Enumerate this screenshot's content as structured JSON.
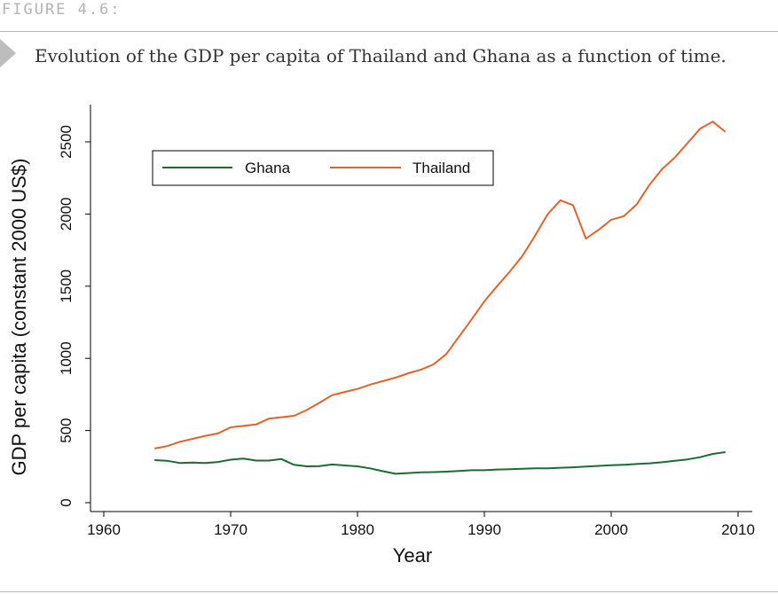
{
  "figure": {
    "label": "FIGURE 4.6:",
    "caption": "Evolution of the GDP per capita of Thailand and Ghana as a function of time."
  },
  "colors": {
    "ghana": "#1e6b32",
    "thailand": "#e0642a",
    "axis": "#000000"
  },
  "chart_data": {
    "type": "line",
    "xlabel": "Year",
    "ylabel": "GDP per capita (constant 2000 US$)",
    "xlim": [
      1958,
      2011
    ],
    "ylim": [
      0,
      2750
    ],
    "xticks": [
      1960,
      1970,
      1980,
      1990,
      2000,
      2010
    ],
    "yticks": [
      0,
      500,
      1000,
      1500,
      2000,
      2500
    ],
    "x": [
      1964,
      1965,
      1966,
      1967,
      1968,
      1969,
      1970,
      1971,
      1972,
      1973,
      1974,
      1975,
      1976,
      1977,
      1978,
      1979,
      1980,
      1981,
      1982,
      1983,
      1984,
      1985,
      1986,
      1987,
      1988,
      1989,
      1990,
      1991,
      1992,
      1993,
      1994,
      1995,
      1996,
      1997,
      1998,
      1999,
      2000,
      2001,
      2002,
      2003,
      2004,
      2005,
      2006,
      2007,
      2008,
      2009
    ],
    "series": [
      {
        "name": "Ghana",
        "values": [
          295,
          290,
          275,
          278,
          275,
          282,
          298,
          305,
          292,
          292,
          302,
          262,
          252,
          253,
          265,
          258,
          252,
          238,
          218,
          200,
          205,
          210,
          212,
          215,
          220,
          225,
          225,
          230,
          232,
          235,
          238,
          238,
          242,
          245,
          250,
          255,
          260,
          263,
          268,
          273,
          280,
          290,
          300,
          315,
          338,
          350
        ]
      },
      {
        "name": "Thailand",
        "values": [
          375,
          392,
          422,
          442,
          463,
          480,
          522,
          532,
          542,
          582,
          592,
          602,
          642,
          692,
          745,
          767,
          788,
          818,
          842,
          867,
          897,
          922,
          958,
          1030,
          1150,
          1270,
          1395,
          1500,
          1600,
          1710,
          1850,
          2000,
          2095,
          2060,
          1830,
          1890,
          1960,
          1985,
          2065,
          2200,
          2310,
          2390,
          2490,
          2590,
          2640,
          2570
        ]
      }
    ],
    "legend": {
      "position": "top-left",
      "entries": [
        "Ghana",
        "Thailand"
      ]
    }
  }
}
